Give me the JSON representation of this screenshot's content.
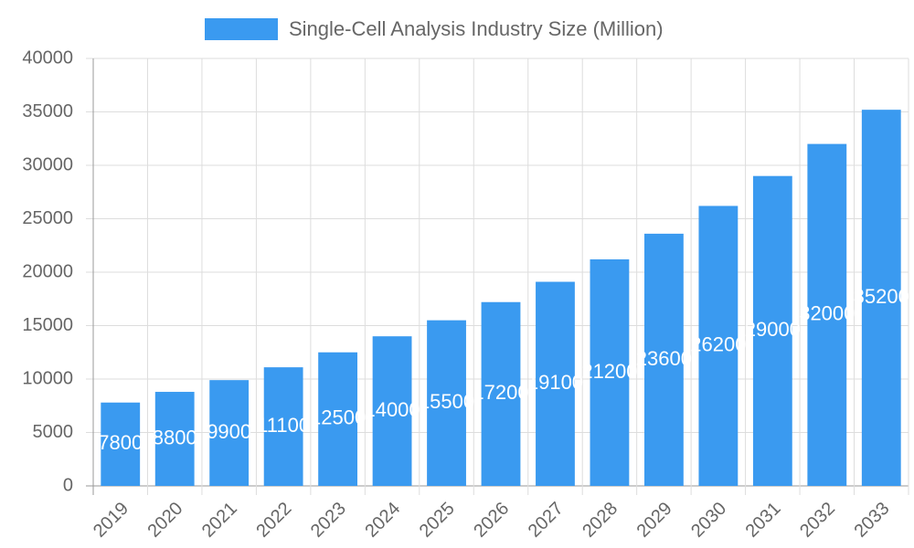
{
  "chart_data": {
    "type": "bar",
    "legend": "Single-Cell Analysis Industry Size (Million)",
    "color": "#3a9af0",
    "categories": [
      "2019",
      "2020",
      "2021",
      "2022",
      "2023",
      "2024",
      "2025",
      "2026",
      "2027",
      "2028",
      "2029",
      "2030",
      "2031",
      "2032",
      "2033"
    ],
    "values": [
      7800,
      8800,
      9900,
      11100,
      12500,
      14000,
      15500,
      17200,
      19100,
      21200,
      23600,
      26200,
      29000,
      32000,
      35200
    ],
    "ylim": [
      0,
      40000
    ],
    "yticks": [
      0,
      5000,
      10000,
      15000,
      20000,
      25000,
      30000,
      35000,
      40000
    ],
    "grid": true
  }
}
